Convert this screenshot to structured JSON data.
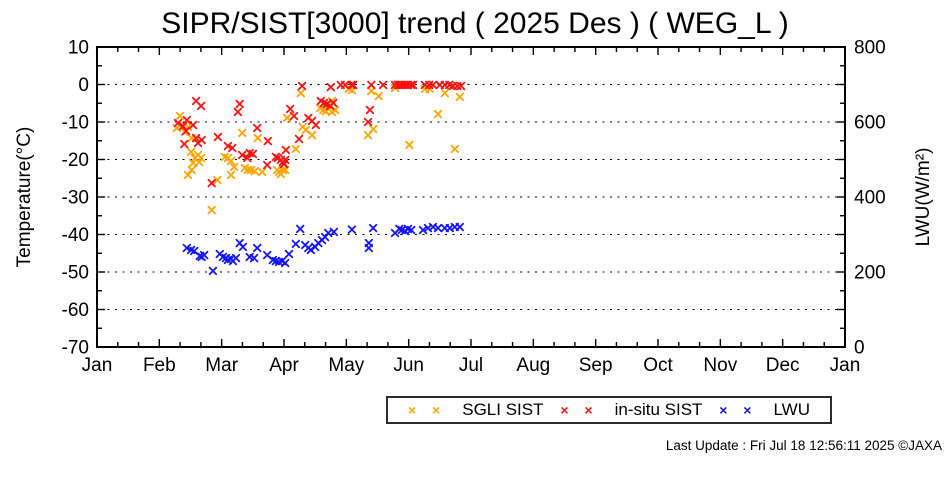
{
  "footer": "Last Update : Fri Jul 18 12:56:11 2025  ©JAXA",
  "chart_data": {
    "type": "scatter",
    "title": "SIPR/SIST[3000] trend ( 2025 Des ) ( WEG_L )",
    "x_axis": {
      "unit": "month (0 = Jan 1, 12 = next Jan 1)",
      "tick_labels": [
        "Jan",
        "Feb",
        "Mar",
        "Apr",
        "May",
        "Jun",
        "Jul",
        "Aug",
        "Sep",
        "Oct",
        "Nov",
        "Dec",
        "Jan"
      ],
      "range_months": [
        0,
        12
      ],
      "minor_ticks_per_month": 2
    },
    "y_left": {
      "label": "Temperature(°C)",
      "ticks": [
        10,
        0,
        -10,
        -20,
        -30,
        -40,
        -50,
        -60,
        -70
      ],
      "range": [
        -70,
        10
      ],
      "minor_tick_step": 5
    },
    "y_right": {
      "label": "LWU(W/m²)",
      "ticks": [
        800,
        600,
        400,
        200,
        0
      ],
      "range": [
        0,
        800
      ],
      "minor_tick_step": 50
    },
    "grid": "horizontal dotted lines at 0 to -60 °C (every 10 °C)",
    "legend_position": "below chart, boxed",
    "series": [
      {
        "name": "SGLI SIST",
        "color": "#ffa500",
        "axis": "left",
        "marker_glyph": "×",
        "points": [
          [
            1.28,
            -11.6
          ],
          [
            1.33,
            -8.4
          ],
          [
            1.41,
            -12.7
          ],
          [
            1.46,
            -11.3
          ],
          [
            1.46,
            -24.1
          ],
          [
            1.51,
            -18.0
          ],
          [
            1.52,
            -14.3
          ],
          [
            1.52,
            -22.8
          ],
          [
            1.54,
            -20.9
          ],
          [
            1.57,
            -19.6
          ],
          [
            1.62,
            -18.8
          ],
          [
            1.64,
            -20.7
          ],
          [
            1.67,
            -19.6
          ],
          [
            1.84,
            -33.5
          ],
          [
            1.93,
            -25.5
          ],
          [
            2.05,
            -19.3
          ],
          [
            2.1,
            -19.6
          ],
          [
            2.15,
            -20.4
          ],
          [
            2.15,
            -24.1
          ],
          [
            2.2,
            -22.0
          ],
          [
            2.33,
            -12.9
          ],
          [
            2.37,
            -22.3
          ],
          [
            2.42,
            -22.8
          ],
          [
            2.47,
            -22.8
          ],
          [
            2.53,
            -23.1
          ],
          [
            2.58,
            -14.3
          ],
          [
            2.65,
            -23.3
          ],
          [
            2.89,
            -22.8
          ],
          [
            2.92,
            -23.3
          ],
          [
            2.95,
            -23.9
          ],
          [
            2.98,
            -22.8
          ],
          [
            3.02,
            -22.8
          ],
          [
            3.05,
            -8.9
          ],
          [
            3.19,
            -17.2
          ],
          [
            3.27,
            -2.3
          ],
          [
            3.3,
            -11.3
          ],
          [
            3.35,
            -12.1
          ],
          [
            3.45,
            -13.5
          ],
          [
            3.58,
            -6.3
          ],
          [
            3.63,
            -6.8
          ],
          [
            3.67,
            -7.1
          ],
          [
            3.72,
            -6.5
          ],
          [
            3.77,
            -7.3
          ],
          [
            3.82,
            -6.8
          ],
          [
            3.77,
            -4.4
          ],
          [
            4.04,
            -1.2
          ],
          [
            4.09,
            -1.5
          ],
          [
            4.35,
            -13.5
          ],
          [
            4.4,
            -1.7
          ],
          [
            4.43,
            -11.9
          ],
          [
            4.52,
            -3.1
          ],
          [
            4.78,
            -0.9
          ],
          [
            5.01,
            -16.1
          ],
          [
            5.26,
            -1.2
          ],
          [
            5.34,
            -1.2
          ],
          [
            5.47,
            -7.9
          ],
          [
            5.58,
            -2.3
          ],
          [
            5.74,
            -17.2
          ],
          [
            5.82,
            -3.3
          ]
        ]
      },
      {
        "name": "in-situ SIST",
        "color": "#ff0f0f",
        "axis": "left",
        "marker_glyph": "×",
        "points": [
          [
            1.3,
            -10.3
          ],
          [
            1.38,
            -11.1
          ],
          [
            1.4,
            -15.9
          ],
          [
            1.43,
            -12.4
          ],
          [
            1.44,
            -9.5
          ],
          [
            1.54,
            -10.8
          ],
          [
            1.59,
            -14.3
          ],
          [
            1.62,
            -15.6
          ],
          [
            1.68,
            -14.8
          ],
          [
            1.59,
            -4.4
          ],
          [
            1.67,
            -5.7
          ],
          [
            1.84,
            -26.3
          ],
          [
            1.94,
            -14.0
          ],
          [
            2.1,
            -16.4
          ],
          [
            2.17,
            -16.9
          ],
          [
            2.26,
            -7.3
          ],
          [
            2.29,
            -5.2
          ],
          [
            2.33,
            -18.8
          ],
          [
            2.41,
            -19.6
          ],
          [
            2.45,
            -18.3
          ],
          [
            2.5,
            -18.5
          ],
          [
            2.57,
            -11.6
          ],
          [
            2.73,
            -21.5
          ],
          [
            2.74,
            -15.1
          ],
          [
            2.87,
            -19.3
          ],
          [
            2.9,
            -19.6
          ],
          [
            2.95,
            -20.1
          ],
          [
            2.98,
            -20.7
          ],
          [
            3.0,
            -21.2
          ],
          [
            3.02,
            -20.1
          ],
          [
            3.03,
            -17.5
          ],
          [
            3.1,
            -6.5
          ],
          [
            3.16,
            -8.4
          ],
          [
            3.24,
            -14.5
          ],
          [
            3.29,
            -0.4
          ],
          [
            3.39,
            -8.9
          ],
          [
            3.45,
            -9.7
          ],
          [
            3.51,
            -10.8
          ],
          [
            3.59,
            -4.4
          ],
          [
            3.64,
            -4.9
          ],
          [
            3.69,
            -5.2
          ],
          [
            3.74,
            -5.7
          ],
          [
            3.79,
            -4.9
          ],
          [
            3.75,
            -0.7
          ],
          [
            3.91,
            -0.1
          ],
          [
            3.98,
            -0.1
          ],
          [
            4.08,
            -0.1
          ],
          [
            4.11,
            -0.1
          ],
          [
            4.35,
            -10.0
          ],
          [
            4.38,
            -6.8
          ],
          [
            4.4,
            -0.1
          ],
          [
            4.59,
            -0.1
          ],
          [
            4.78,
            -0.1
          ],
          [
            4.83,
            -0.1
          ],
          [
            4.86,
            -0.1
          ],
          [
            4.9,
            -0.1
          ],
          [
            4.93,
            -0.1
          ],
          [
            4.96,
            -0.1
          ],
          [
            4.99,
            -0.1
          ],
          [
            5.04,
            -0.1
          ],
          [
            5.07,
            -0.1
          ],
          [
            5.26,
            -0.1
          ],
          [
            5.33,
            -0.1
          ],
          [
            5.39,
            -0.1
          ],
          [
            5.5,
            -0.1
          ],
          [
            5.58,
            -0.1
          ],
          [
            5.65,
            -0.1
          ],
          [
            5.71,
            -0.4
          ],
          [
            5.78,
            -0.4
          ],
          [
            5.84,
            -0.4
          ]
        ]
      },
      {
        "name": "LWU",
        "color": "#1414ff",
        "axis": "right",
        "marker_glyph": "×",
        "points": [
          [
            1.44,
            264
          ],
          [
            1.51,
            259
          ],
          [
            1.56,
            256
          ],
          [
            1.65,
            243
          ],
          [
            1.68,
            240
          ],
          [
            1.72,
            245
          ],
          [
            1.86,
            203
          ],
          [
            1.97,
            248
          ],
          [
            2.02,
            240
          ],
          [
            2.07,
            237
          ],
          [
            2.1,
            232
          ],
          [
            2.15,
            235
          ],
          [
            2.18,
            229
          ],
          [
            2.23,
            237
          ],
          [
            2.29,
            277
          ],
          [
            2.34,
            267
          ],
          [
            2.45,
            240
          ],
          [
            2.52,
            237
          ],
          [
            2.57,
            264
          ],
          [
            2.73,
            245
          ],
          [
            2.82,
            232
          ],
          [
            2.87,
            229
          ],
          [
            2.92,
            227
          ],
          [
            2.97,
            229
          ],
          [
            3.02,
            224
          ],
          [
            3.08,
            248
          ],
          [
            3.19,
            275
          ],
          [
            3.26,
            315
          ],
          [
            3.34,
            272
          ],
          [
            3.39,
            264
          ],
          [
            3.43,
            259
          ],
          [
            3.5,
            267
          ],
          [
            3.55,
            277
          ],
          [
            3.61,
            285
          ],
          [
            3.66,
            293
          ],
          [
            3.71,
            304
          ],
          [
            3.8,
            307
          ],
          [
            4.09,
            313
          ],
          [
            4.36,
            277
          ],
          [
            4.36,
            264
          ],
          [
            4.43,
            317
          ],
          [
            4.78,
            304
          ],
          [
            4.85,
            315
          ],
          [
            4.89,
            312
          ],
          [
            4.94,
            309
          ],
          [
            4.99,
            315
          ],
          [
            5.04,
            312
          ],
          [
            5.23,
            312
          ],
          [
            5.31,
            317
          ],
          [
            5.39,
            320
          ],
          [
            5.47,
            317
          ],
          [
            5.58,
            317
          ],
          [
            5.66,
            317
          ],
          [
            5.74,
            320
          ],
          [
            5.82,
            320
          ]
        ]
      }
    ]
  }
}
